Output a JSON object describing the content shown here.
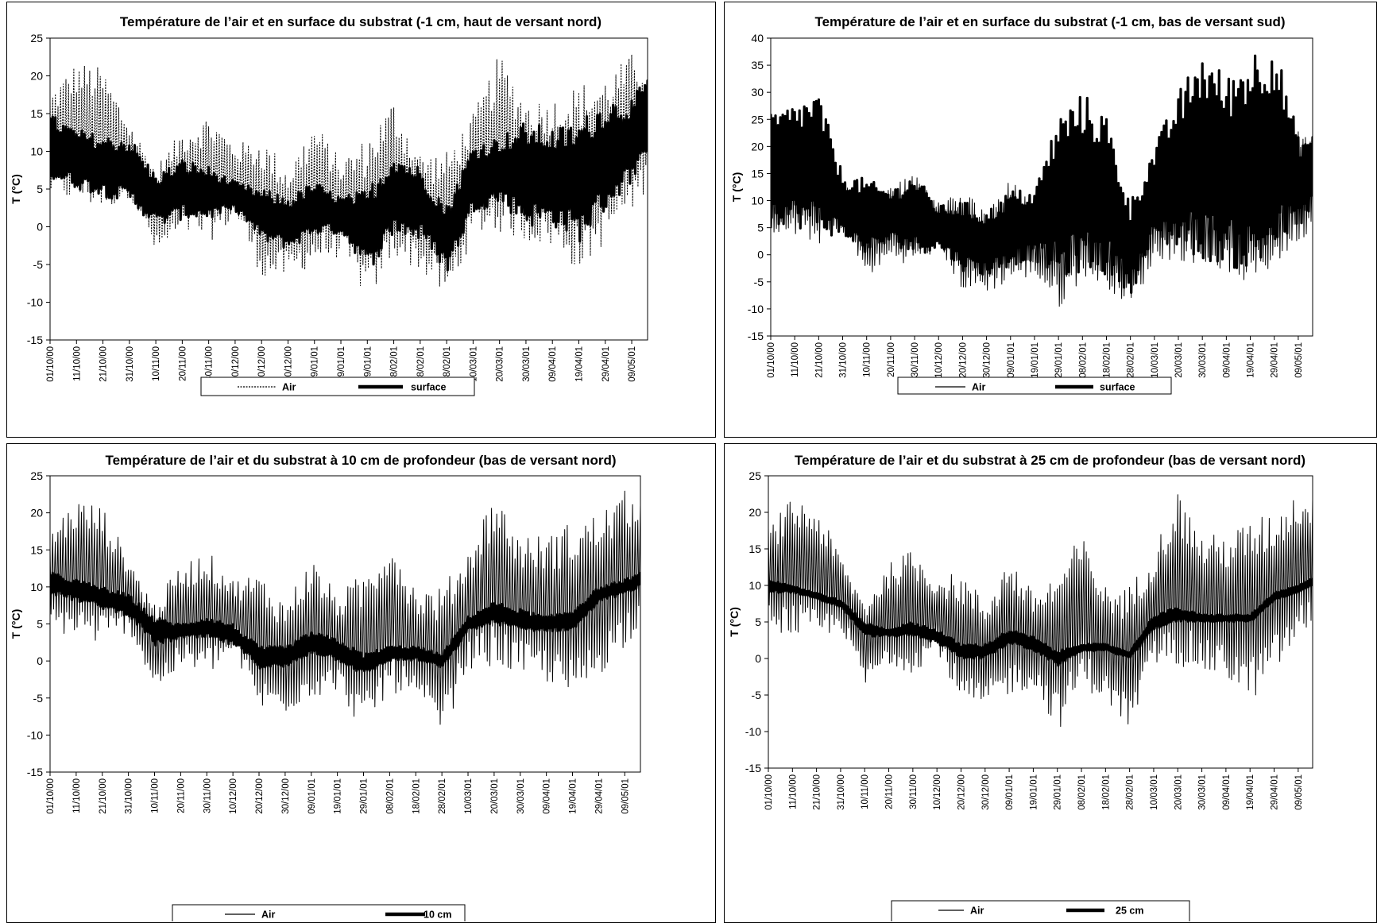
{
  "chart_data": [
    {
      "type": "line",
      "title": "Température de l’air et en surface du substrat (-1 cm, haut de versant nord)",
      "xlabel": "",
      "ylabel": "T (°C)",
      "ylim": [
        -15,
        25
      ],
      "yticks": [
        "25",
        "20",
        "15",
        "10",
        "5",
        "0",
        "-5",
        "-10",
        "-15"
      ],
      "x_range": [
        "01/10/00",
        "15/05/01"
      ],
      "x_ticks": [
        "01/10/00",
        "11/10/00",
        "21/10/00",
        "31/10/00",
        "10/11/00",
        "20/11/00",
        "30/11/00",
        "10/12/00",
        "20/12/00",
        "30/12/00",
        "09/01/01",
        "19/01/01",
        "29/01/01",
        "08/02/01",
        "18/02/01",
        "28/02/01",
        "10/03/01",
        "20/03/01",
        "30/03/01",
        "09/04/01",
        "19/04/01",
        "29/04/01",
        "09/05/01"
      ],
      "legend": "bottom",
      "series": [
        {
          "name": "Air",
          "style": "dotted",
          "dates": [
            "01/10/00",
            "11/10/00",
            "21/10/00",
            "31/10/00",
            "10/11/00",
            "20/11/00",
            "30/11/00",
            "10/12/00",
            "20/12/00",
            "30/12/00",
            "09/01/01",
            "19/01/01",
            "29/01/01",
            "08/02/01",
            "18/02/01",
            "28/02/01",
            "10/03/01",
            "20/03/01",
            "30/03/01",
            "09/04/01",
            "19/04/01",
            "29/04/01",
            "09/05/01",
            "15/05/01"
          ],
          "max": [
            18,
            22,
            21,
            14,
            8,
            13,
            15,
            11,
            12,
            8,
            14,
            9,
            12,
            17,
            10,
            10,
            15,
            23,
            17,
            17,
            19,
            20,
            23,
            22
          ],
          "min": [
            4,
            3,
            2,
            4,
            -4,
            -1,
            -2,
            1,
            -7,
            -7,
            -5,
            -4,
            -10,
            -4,
            -6,
            -10,
            -1,
            -1,
            -2,
            -3,
            -6,
            -2,
            2,
            5
          ]
        },
        {
          "name": "surface",
          "style": "thick",
          "dates": [
            "01/10/00",
            "11/10/00",
            "21/10/00",
            "31/10/00",
            "10/11/00",
            "20/11/00",
            "30/11/00",
            "10/12/00",
            "20/12/00",
            "30/12/00",
            "09/01/01",
            "19/01/01",
            "29/01/01",
            "08/02/01",
            "18/02/01",
            "28/02/01",
            "10/03/01",
            "20/03/01",
            "30/03/01",
            "09/04/01",
            "19/04/01",
            "29/04/01",
            "09/05/01",
            "15/05/01"
          ],
          "max": [
            15,
            13,
            12,
            12,
            7,
            9,
            8,
            6,
            5,
            4,
            6,
            4,
            5,
            10,
            8,
            3,
            11,
            12,
            14,
            13,
            14,
            17,
            17,
            20
          ],
          "min": [
            6,
            5,
            4,
            3,
            0,
            1,
            1,
            2,
            -2,
            -3,
            -1,
            -1,
            -6,
            -1,
            -2,
            -6,
            2,
            3,
            0,
            0,
            -2,
            2,
            6,
            8
          ]
        }
      ]
    },
    {
      "type": "line",
      "title": "Température de l’air et en surface du substrat (-1 cm, bas de versant sud)",
      "xlabel": "",
      "ylabel": "T (°C)",
      "ylim": [
        -15,
        40
      ],
      "yticks": [
        "40",
        "35",
        "30",
        "25",
        "20",
        "15",
        "10",
        "5",
        "0",
        "-5",
        "-10",
        "-15"
      ],
      "x_range": [
        "01/10/00",
        "15/05/01"
      ],
      "x_ticks": [
        "01/10/00",
        "11/10/00",
        "21/10/00",
        "31/10/00",
        "10/11/00",
        "20/11/00",
        "30/11/00",
        "10/12/00",
        "20/12/00",
        "30/12/00",
        "09/01/01",
        "19/01/01",
        "29/01/01",
        "08/02/01",
        "18/02/01",
        "28/02/01",
        "10/03/01",
        "20/03/01",
        "30/03/01",
        "09/04/01",
        "19/04/01",
        "29/04/01",
        "09/05/01"
      ],
      "legend": "bottom",
      "series": [
        {
          "name": "Air",
          "style": "thin",
          "dates": [
            "01/10/00",
            "11/10/00",
            "21/10/00",
            "31/10/00",
            "10/11/00",
            "20/11/00",
            "30/11/00",
            "10/12/00",
            "20/12/00",
            "30/12/00",
            "09/01/01",
            "19/01/01",
            "29/01/01",
            "08/02/01",
            "18/02/01",
            "28/02/01",
            "10/03/01",
            "20/03/01",
            "30/03/01",
            "09/04/01",
            "19/04/01",
            "29/04/01",
            "09/05/01",
            "15/05/01"
          ],
          "max": [
            18,
            22,
            21,
            14,
            8,
            13,
            15,
            11,
            12,
            8,
            14,
            9,
            12,
            17,
            10,
            10,
            15,
            23,
            17,
            17,
            19,
            20,
            23,
            22
          ],
          "min": [
            4,
            3,
            2,
            4,
            -4,
            -1,
            -2,
            1,
            -7,
            -7,
            -5,
            -4,
            -10,
            -4,
            -6,
            -10,
            -1,
            -1,
            -2,
            -3,
            -6,
            -2,
            2,
            5
          ]
        },
        {
          "name": "surface",
          "style": "thick",
          "dates": [
            "01/10/00",
            "11/10/00",
            "21/10/00",
            "31/10/00",
            "10/11/00",
            "20/11/00",
            "30/11/00",
            "10/12/00",
            "20/12/00",
            "30/12/00",
            "09/01/01",
            "19/01/01",
            "29/01/01",
            "08/02/01",
            "18/02/01",
            "28/02/01",
            "10/03/01",
            "20/03/01",
            "30/03/01",
            "09/04/01",
            "19/04/01",
            "29/04/01",
            "09/05/01",
            "15/05/01"
          ],
          "max": [
            26,
            28,
            30,
            15,
            14,
            12,
            15,
            9,
            10,
            8,
            12,
            12,
            26,
            30,
            26,
            10,
            20,
            30,
            38,
            33,
            38,
            40,
            22,
            22
          ],
          "min": [
            6,
            5,
            4,
            3,
            0,
            2,
            0,
            1,
            -3,
            -4,
            -2,
            -1,
            -5,
            -3,
            -4,
            -7,
            2,
            1,
            -1,
            -2,
            -4,
            0,
            5,
            8
          ]
        }
      ]
    },
    {
      "type": "line",
      "title": "Température de l’air et du substrat à 10 cm de profondeur (bas de versant nord)",
      "xlabel": "",
      "ylabel": "T (°C)",
      "ylim": [
        -15,
        25
      ],
      "yticks": [
        "25",
        "20",
        "15",
        "10",
        "5",
        "0",
        "-5",
        "-10",
        "-15"
      ],
      "x_range": [
        "01/10/00",
        "15/05/01"
      ],
      "x_ticks": [
        "01/10/00",
        "11/10/00",
        "21/10/00",
        "31/10/00",
        "10/11/00",
        "20/11/00",
        "30/11/00",
        "10/12/00",
        "20/12/00",
        "30/12/00",
        "09/01/01",
        "19/01/01",
        "29/01/01",
        "08/02/01",
        "18/02/01",
        "28/02/01",
        "10/03/01",
        "20/03/01",
        "30/03/01",
        "09/04/01",
        "19/04/01",
        "29/04/01",
        "09/05/01"
      ],
      "legend": "bottom",
      "series": [
        {
          "name": "Air",
          "style": "thin",
          "dates": [
            "01/10/00",
            "11/10/00",
            "21/10/00",
            "31/10/00",
            "10/11/00",
            "20/11/00",
            "30/11/00",
            "10/12/00",
            "20/12/00",
            "30/12/00",
            "09/01/01",
            "19/01/01",
            "29/01/01",
            "08/02/01",
            "18/02/01",
            "28/02/01",
            "10/03/01",
            "20/03/01",
            "30/03/01",
            "09/04/01",
            "19/04/01",
            "29/04/01",
            "09/05/01",
            "15/05/01"
          ],
          "max": [
            18,
            22,
            21,
            14,
            8,
            13,
            15,
            11,
            12,
            8,
            14,
            9,
            12,
            17,
            10,
            10,
            15,
            23,
            17,
            17,
            19,
            20,
            23,
            22
          ],
          "min": [
            4,
            3,
            2,
            4,
            -4,
            -1,
            -2,
            1,
            -7,
            -7,
            -5,
            -4,
            -10,
            -4,
            -6,
            -10,
            -1,
            -1,
            -2,
            -3,
            -6,
            -2,
            2,
            5
          ]
        },
        {
          "name": "10 cm",
          "style": "thick",
          "dates": [
            "01/10/00",
            "11/10/00",
            "21/10/00",
            "31/10/00",
            "10/11/00",
            "20/11/00",
            "30/11/00",
            "10/12/00",
            "20/12/00",
            "30/12/00",
            "09/01/01",
            "19/01/01",
            "29/01/01",
            "08/02/01",
            "18/02/01",
            "28/02/01",
            "10/03/01",
            "20/03/01",
            "30/03/01",
            "09/04/01",
            "19/04/01",
            "29/04/01",
            "09/05/01",
            "15/05/01"
          ],
          "max": [
            12,
            11,
            10,
            9,
            6,
            5,
            6,
            5,
            2,
            2,
            4,
            3,
            1,
            2,
            2,
            1,
            6,
            8,
            7,
            6,
            7,
            10,
            11,
            12
          ],
          "min": [
            9,
            8,
            7,
            6,
            2,
            3,
            3,
            2,
            -1,
            -1,
            1,
            0,
            -2,
            0,
            0,
            -1,
            4,
            5,
            4,
            4,
            4,
            8,
            9,
            10
          ]
        }
      ]
    },
    {
      "type": "line",
      "title": "Température de l’air et du substrat à 25 cm de profondeur (bas de versant nord)",
      "xlabel": "",
      "ylabel": "T (°C)",
      "ylim": [
        -15,
        25
      ],
      "yticks": [
        "25",
        "20",
        "15",
        "10",
        "5",
        "0",
        "-5",
        "-10",
        "-15"
      ],
      "x_range": [
        "01/10/00",
        "15/05/01"
      ],
      "x_ticks": [
        "01/10/00",
        "11/10/00",
        "21/10/00",
        "31/10/00",
        "10/11/00",
        "20/11/00",
        "30/11/00",
        "10/12/00",
        "20/12/00",
        "30/12/00",
        "09/01/01",
        "19/01/01",
        "29/01/01",
        "08/02/01",
        "18/02/01",
        "28/02/01",
        "10/03/01",
        "20/03/01",
        "30/03/01",
        "09/04/01",
        "19/04/01",
        "29/04/01",
        "09/05/01"
      ],
      "legend": "bottom",
      "series": [
        {
          "name": "Air",
          "style": "thin",
          "dates": [
            "01/10/00",
            "11/10/00",
            "21/10/00",
            "31/10/00",
            "10/11/00",
            "20/11/00",
            "30/11/00",
            "10/12/00",
            "20/12/00",
            "30/12/00",
            "09/01/01",
            "19/01/01",
            "29/01/01",
            "08/02/01",
            "18/02/01",
            "28/02/01",
            "10/03/01",
            "20/03/01",
            "30/03/01",
            "09/04/01",
            "19/04/01",
            "29/04/01",
            "09/05/01",
            "15/05/01"
          ],
          "max": [
            18,
            22,
            21,
            14,
            8,
            13,
            15,
            11,
            12,
            8,
            14,
            9,
            12,
            17,
            10,
            10,
            15,
            23,
            17,
            17,
            19,
            20,
            23,
            22
          ],
          "min": [
            4,
            3,
            2,
            4,
            -4,
            -1,
            -2,
            1,
            -7,
            -7,
            -5,
            -4,
            -10,
            -4,
            -6,
            -10,
            -1,
            -1,
            -2,
            -3,
            -6,
            -2,
            2,
            5
          ]
        },
        {
          "name": "25 cm",
          "style": "thick",
          "dates": [
            "01/10/00",
            "11/10/00",
            "21/10/00",
            "31/10/00",
            "10/11/00",
            "20/11/00",
            "30/11/00",
            "10/12/00",
            "20/12/00",
            "30/12/00",
            "09/01/01",
            "19/01/01",
            "29/01/01",
            "08/02/01",
            "18/02/01",
            "28/02/01",
            "10/03/01",
            "20/03/01",
            "30/03/01",
            "09/04/01",
            "19/04/01",
            "29/04/01",
            "09/05/01",
            "15/05/01"
          ],
          "max": [
            11,
            10,
            9,
            8,
            5,
            4,
            5,
            4,
            2,
            2,
            4,
            3,
            1,
            2,
            2,
            1,
            6,
            7,
            6,
            6,
            6,
            9,
            10,
            11
          ],
          "min": [
            9,
            9,
            8,
            7,
            3,
            3,
            3,
            2,
            0,
            0,
            2,
            1,
            -1,
            1,
            1,
            0,
            4,
            5,
            5,
            5,
            5,
            8,
            9,
            10
          ]
        }
      ]
    }
  ]
}
